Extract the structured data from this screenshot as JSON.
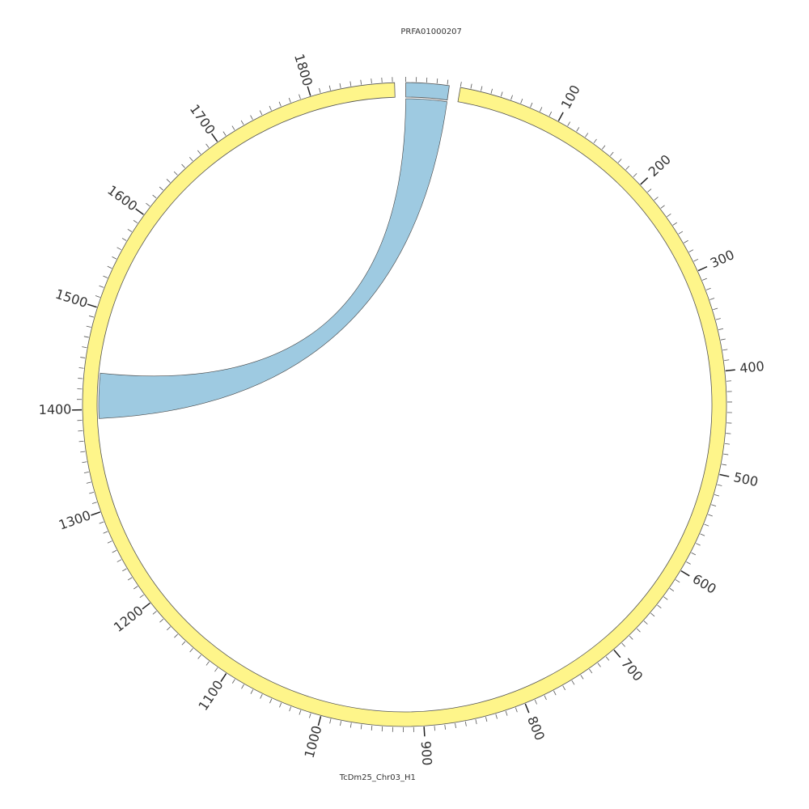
{
  "chart_data": {
    "type": "chord",
    "segments": [
      {
        "name": "TcDm25_Chr03_H1",
        "length": 1882,
        "color": "#fef58a"
      },
      {
        "name": "PRFA01000207",
        "length": 42,
        "color": "#9ecae1"
      }
    ],
    "ticks": [
      100,
      200,
      300,
      400,
      500,
      600,
      700,
      800,
      900,
      1000,
      1100,
      1200,
      1300,
      1400,
      1500,
      1600,
      1700,
      1800
    ],
    "minor_tick_step": 10,
    "links": [
      {
        "source": 1,
        "source_start": 0,
        "source_end": 42,
        "target": 0,
        "target_start": 1391,
        "target_end": 1437,
        "color": "#9ecae1"
      }
    ]
  }
}
